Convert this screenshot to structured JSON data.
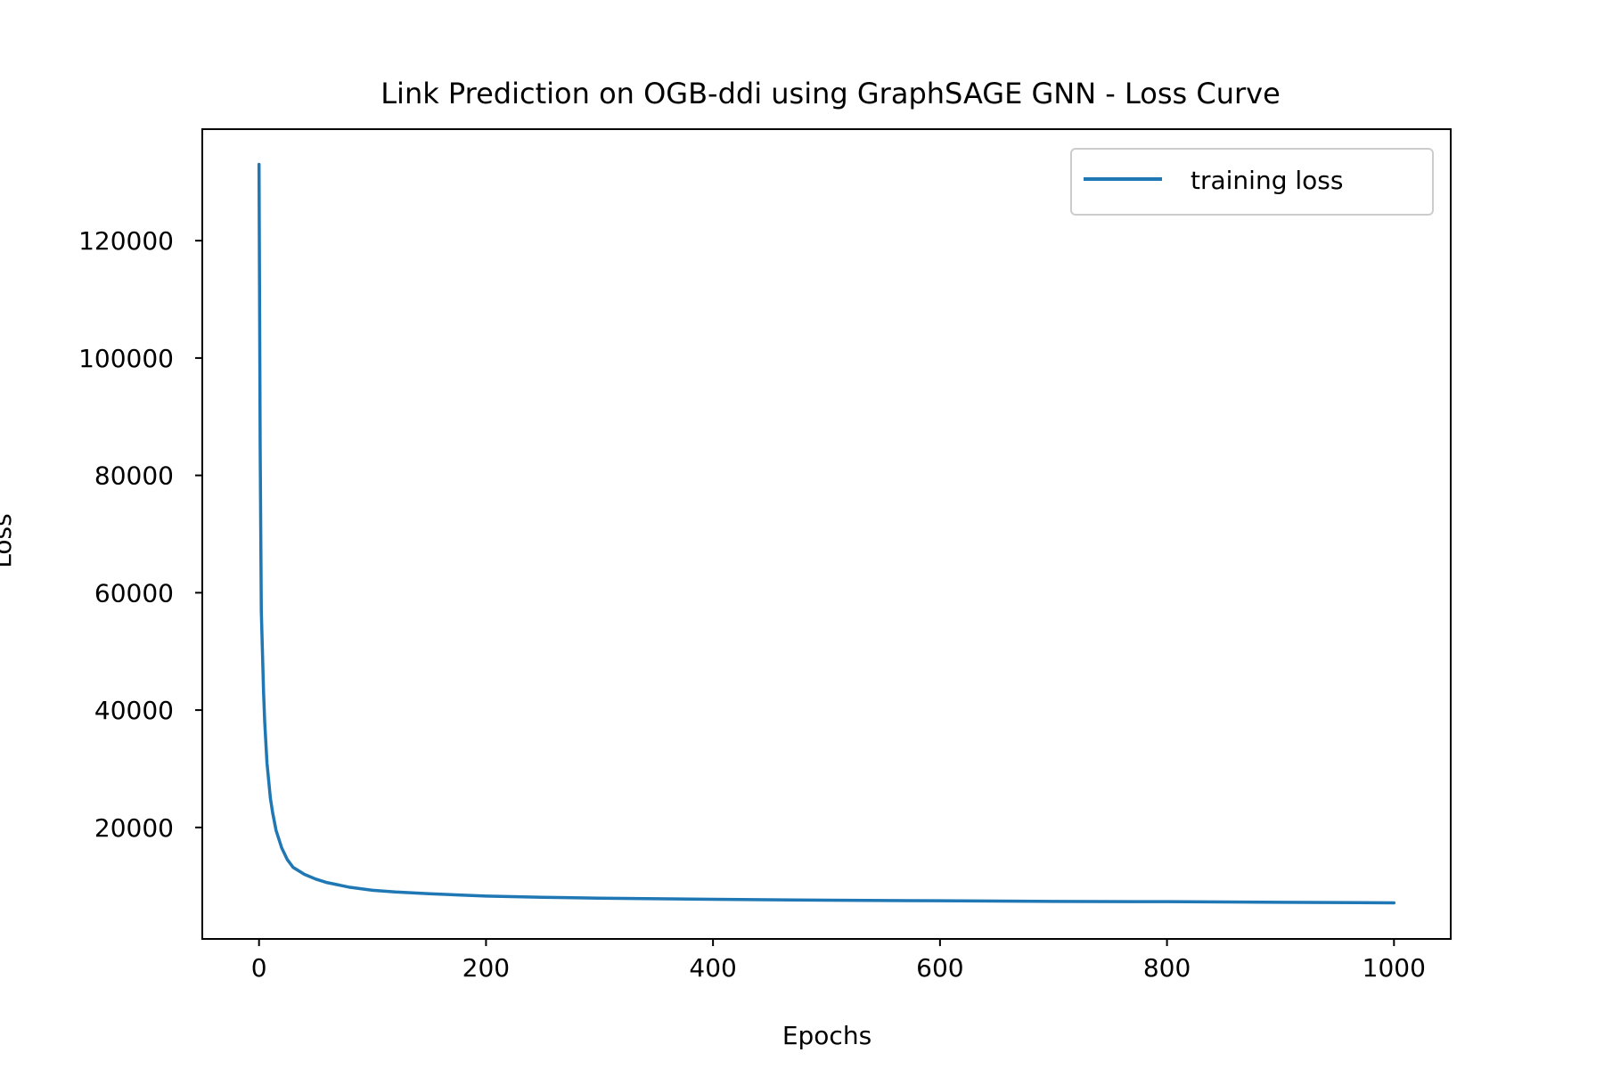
{
  "chart_data": {
    "type": "line",
    "title": "Link Prediction on OGB-ddi using GraphSAGE GNN - Loss Curve",
    "xlabel": "Epochs",
    "ylabel": "Loss",
    "xlim": [
      -50,
      1050
    ],
    "ylim": [
      1000,
      139000
    ],
    "xticks": [
      0,
      200,
      400,
      600,
      800,
      1000
    ],
    "xtick_labels": [
      "0",
      "200",
      "400",
      "600",
      "800",
      "1000"
    ],
    "yticks": [
      20000,
      40000,
      60000,
      80000,
      100000,
      120000
    ],
    "ytick_labels": [
      "20000",
      "40000",
      "60000",
      "80000",
      "100000",
      "120000"
    ],
    "grid": false,
    "legend_position": "top-right",
    "series": [
      {
        "name": "training loss",
        "color": "#1f77b4",
        "x": [
          0,
          1,
          2,
          3,
          4,
          5,
          7,
          10,
          12,
          15,
          20,
          25,
          30,
          40,
          50,
          60,
          80,
          100,
          120,
          150,
          200,
          250,
          300,
          400,
          500,
          600,
          700,
          800,
          900,
          1000
        ],
        "y": [
          133000,
          85000,
          57000,
          50000,
          43000,
          38000,
          31000,
          25000,
          22500,
          19500,
          16500,
          14500,
          13200,
          12000,
          11200,
          10600,
          9800,
          9300,
          9000,
          8700,
          8300,
          8100,
          7950,
          7750,
          7600,
          7500,
          7400,
          7350,
          7250,
          7150
        ]
      }
    ]
  }
}
